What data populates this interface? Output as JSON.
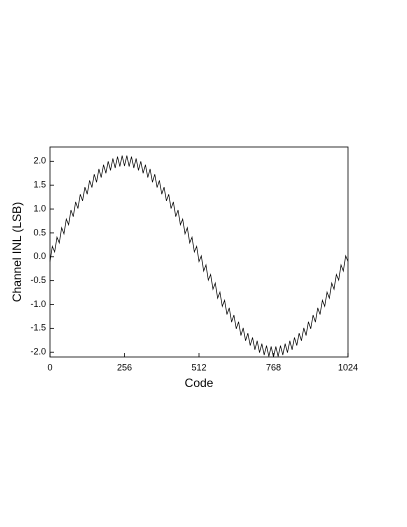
{
  "chart_data": {
    "type": "line",
    "x_label": "Code",
    "y_label": "Channel INL (LSB)",
    "x": [
      0,
      8,
      16,
      24,
      32,
      40,
      48,
      56,
      64,
      72,
      80,
      88,
      96,
      104,
      112,
      120,
      128,
      136,
      144,
      152,
      160,
      168,
      176,
      184,
      192,
      200,
      208,
      216,
      224,
      232,
      240,
      248,
      256,
      264,
      272,
      280,
      288,
      296,
      304,
      312,
      320,
      328,
      336,
      344,
      352,
      360,
      368,
      376,
      384,
      392,
      400,
      408,
      416,
      424,
      432,
      440,
      448,
      456,
      464,
      472,
      480,
      488,
      496,
      504,
      512,
      520,
      528,
      536,
      544,
      552,
      560,
      568,
      576,
      584,
      592,
      600,
      608,
      616,
      624,
      632,
      640,
      648,
      656,
      664,
      672,
      680,
      688,
      696,
      704,
      712,
      720,
      728,
      736,
      744,
      752,
      760,
      768,
      776,
      784,
      792,
      800,
      808,
      816,
      824,
      832,
      840,
      848,
      856,
      864,
      872,
      880,
      888,
      896,
      904,
      912,
      920,
      928,
      936,
      944,
      952,
      960,
      968,
      976,
      984,
      992,
      1000,
      1008,
      1016,
      1024
    ],
    "series": [
      {
        "color": "#000000",
        "values": [
          -0.1,
          0.22,
          0.1,
          0.41,
          0.29,
          0.61,
          0.48,
          0.79,
          0.67,
          0.98,
          0.84,
          1.15,
          1.01,
          1.31,
          1.17,
          1.46,
          1.31,
          1.6,
          1.45,
          1.73,
          1.56,
          1.84,
          1.66,
          1.93,
          1.75,
          2.0,
          1.81,
          2.06,
          1.86,
          2.1,
          1.89,
          2.12,
          1.9,
          2.12,
          1.89,
          2.1,
          1.86,
          2.06,
          1.81,
          2.0,
          1.75,
          1.93,
          1.66,
          1.84,
          1.56,
          1.73,
          1.45,
          1.6,
          1.31,
          1.46,
          1.17,
          1.31,
          1.01,
          1.15,
          0.84,
          0.98,
          0.67,
          0.79,
          0.48,
          0.61,
          0.29,
          0.41,
          0.1,
          0.22,
          -0.1,
          0.02,
          -0.3,
          -0.17,
          -0.49,
          -0.37,
          -0.68,
          -0.55,
          -0.87,
          -0.74,
          -1.04,
          -0.91,
          -1.21,
          -1.07,
          -1.37,
          -1.22,
          -1.51,
          -1.36,
          -1.65,
          -1.49,
          -1.76,
          -1.6,
          -1.86,
          -1.69,
          -1.95,
          -1.76,
          -2.01,
          -1.82,
          -2.06,
          -1.86,
          -2.09,
          -1.88,
          -2.1,
          -1.88,
          -2.09,
          -1.86,
          -2.06,
          -1.82,
          -2.01,
          -1.76,
          -1.95,
          -1.69,
          -1.86,
          -1.6,
          -1.76,
          -1.49,
          -1.65,
          -1.36,
          -1.51,
          -1.22,
          -1.37,
          -1.07,
          -1.21,
          -0.91,
          -1.04,
          -0.74,
          -0.87,
          -0.55,
          -0.68,
          -0.37,
          -0.49,
          -0.17,
          -0.3,
          0.02,
          -0.1
        ]
      }
    ],
    "xlim": [
      0,
      1024
    ],
    "xticks": [
      0,
      256,
      512,
      768,
      1024
    ],
    "ylim": [
      -2.1,
      2.3
    ],
    "yticks": [
      {
        "value": -2,
        "label": "-2.0"
      },
      -1.5,
      {
        "value": -1,
        "label": "-1.0"
      },
      -0.5,
      {
        "value": 0,
        "label": "0.0"
      },
      0.5,
      {
        "value": 1,
        "label": "1.0"
      },
      1.5,
      {
        "value": 2,
        "label": "2.0"
      }
    ],
    "grid": false
  }
}
